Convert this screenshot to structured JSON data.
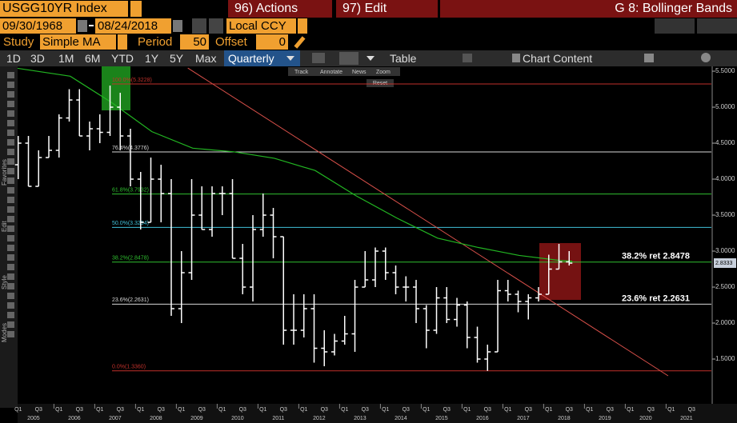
{
  "toolbar": {
    "ticker": "USGG10YR Index",
    "actions": "96) Actions",
    "edit": "97) Edit",
    "function": "G 8: Bollinger Bands",
    "start_date": "09/30/1968",
    "end_date": "08/24/2018",
    "currency": "Local CCY",
    "study_label": "Study",
    "study": "Simple MA",
    "period_label": "Period",
    "period": "50",
    "offset_label": "Offset",
    "offset": "0",
    "tabs": [
      "1D",
      "3D",
      "1M",
      "6M",
      "YTD",
      "1Y",
      "5Y",
      "Max"
    ],
    "frequency": "Quarterly",
    "table": "Table",
    "chart_content": "Chart Content",
    "mini_tools": [
      "Track",
      "Annotate",
      "News",
      "Zoom"
    ],
    "reset": "Reset",
    "side_labels": [
      "Favorites",
      "Edit",
      "Style",
      "Modes"
    ]
  },
  "chart_data": {
    "type": "ohlc",
    "series": [
      {
        "color": "#ffffff",
        "x": [
          2005.125,
          2005.375,
          2005.625,
          2005.875,
          2006.125,
          2006.375,
          2006.625,
          2006.875,
          2007.125,
          2007.375,
          2007.625,
          2007.875,
          2008.125,
          2008.375,
          2008.625,
          2008.875,
          2009.125,
          2009.375,
          2009.625,
          2009.875,
          2010.125,
          2010.375,
          2010.625,
          2010.875,
          2011.125,
          2011.375,
          2011.625,
          2011.875,
          2012.125,
          2012.375,
          2012.625,
          2012.875,
          2013.125,
          2013.375,
          2013.625,
          2013.875,
          2014.125,
          2014.375,
          2014.625,
          2014.875,
          2015.125,
          2015.375,
          2015.625,
          2015.875,
          2016.125,
          2016.375,
          2016.625,
          2016.875,
          2017.125,
          2017.375,
          2017.625,
          2017.875,
          2018.125,
          2018.375,
          2018.625
        ],
        "open": [
          4.2,
          4.5,
          3.9,
          4.3,
          4.4,
          4.85,
          5.1,
          4.6,
          4.7,
          4.65,
          5.0,
          4.6,
          4.0,
          3.4,
          4.0,
          3.8,
          2.2,
          2.7,
          3.5,
          3.3,
          3.8,
          3.8,
          2.9,
          2.5,
          3.3,
          3.5,
          3.2,
          1.9,
          1.9,
          2.2,
          1.65,
          1.6,
          1.75,
          1.85,
          2.5,
          2.6,
          3.0,
          2.7,
          2.5,
          2.5,
          2.2,
          1.9,
          2.35,
          2.05,
          2.25,
          1.8,
          1.5,
          1.6,
          2.45,
          2.4,
          2.3,
          2.35,
          2.4,
          2.75,
          2.85
        ],
        "high": [
          4.6,
          4.6,
          4.4,
          4.6,
          4.9,
          5.25,
          5.25,
          4.8,
          4.9,
          5.3,
          5.2,
          4.7,
          4.1,
          4.3,
          4.2,
          4.0,
          3.0,
          4.0,
          3.9,
          3.9,
          3.9,
          4.0,
          3.1,
          3.5,
          3.8,
          3.6,
          3.2,
          2.4,
          2.4,
          2.4,
          1.9,
          1.85,
          2.1,
          2.6,
          3.0,
          3.05,
          3.05,
          2.8,
          2.65,
          2.6,
          2.25,
          2.5,
          2.5,
          2.35,
          2.3,
          1.95,
          1.7,
          2.6,
          2.6,
          2.45,
          2.4,
          2.5,
          2.95,
          3.1,
          3.0
        ],
        "low": [
          4.0,
          3.9,
          3.9,
          4.3,
          4.3,
          4.8,
          4.6,
          4.4,
          4.5,
          4.6,
          4.4,
          3.9,
          3.3,
          3.4,
          3.4,
          2.1,
          2.0,
          2.6,
          3.3,
          3.2,
          3.5,
          2.9,
          2.4,
          2.3,
          3.2,
          2.9,
          1.7,
          1.7,
          1.8,
          1.45,
          1.4,
          1.55,
          1.7,
          1.6,
          2.5,
          2.5,
          2.6,
          2.4,
          2.3,
          2.0,
          1.65,
          1.85,
          2.0,
          1.95,
          1.65,
          1.45,
          1.336,
          1.6,
          2.3,
          2.15,
          2.05,
          2.3,
          2.4,
          2.75,
          2.8
        ],
        "close": [
          4.5,
          3.9,
          4.3,
          4.4,
          4.85,
          5.1,
          4.6,
          4.7,
          4.65,
          5.0,
          4.6,
          4.0,
          3.4,
          4.0,
          3.8,
          2.2,
          2.7,
          3.5,
          3.3,
          3.8,
          3.8,
          2.9,
          2.5,
          3.3,
          3.5,
          3.2,
          1.9,
          1.9,
          2.2,
          1.65,
          1.6,
          1.75,
          1.85,
          2.5,
          2.6,
          3.0,
          2.7,
          2.5,
          2.5,
          2.2,
          1.9,
          2.35,
          2.05,
          2.25,
          1.8,
          1.5,
          1.6,
          2.45,
          2.4,
          2.3,
          2.35,
          2.4,
          2.75,
          2.85,
          2.8333
        ]
      }
    ],
    "moving_average": {
      "color": "#22b522",
      "x": [
        2005.11,
        2006.4,
        2007.4,
        2008.4,
        2009.4,
        2010.4,
        2011.4,
        2012.4,
        2013.4,
        2014.4,
        2015.4,
        2016.4,
        2017.4,
        2018.4,
        2018.7
      ],
      "values": [
        5.54,
        5.43,
        5.07,
        4.66,
        4.43,
        4.38,
        4.29,
        4.12,
        3.77,
        3.46,
        3.18,
        3.05,
        2.94,
        2.87,
        2.86
      ]
    },
    "trendline": {
      "color": "#d9504a",
      "x": [
        2009.28,
        2021.05
      ],
      "values": [
        5.544,
        1.267
      ]
    },
    "levels": [
      {
        "value": 5.3228,
        "label": "100.0%(5.3228)",
        "color": "#c0302a"
      },
      {
        "value": 4.3776,
        "label": "76.4%(4.3776)",
        "color": "#d8d8d8"
      },
      {
        "value": 3.7932,
        "label": "61.8%(3.7932)",
        "color": "#2fbf2f"
      },
      {
        "value": 3.3294,
        "label": "50.0%(3.3294)",
        "color": "#40c0d8"
      },
      {
        "value": 2.8478,
        "label": "38.2%(2.8478)",
        "color": "#2fbf2f"
      },
      {
        "value": 2.2631,
        "label": "23.6%(2.2631)",
        "color": "#d8d8d8"
      },
      {
        "value": 1.336,
        "label": "0.0%(1.3360)",
        "color": "#c0302a"
      }
    ],
    "annotations": [
      {
        "text": "38.2% ret 2.8478",
        "value": 2.8478
      },
      {
        "text": "23.6% ret 2.2631",
        "value": 2.2631
      }
    ],
    "last_value": {
      "value": 2.8333,
      "label": "2.8333"
    },
    "xlim": [
      2005.11,
      2022.11
    ],
    "ylim": [
      0.878,
      5.567
    ],
    "yticks": [
      {
        "value": 1.5,
        "label": "1.5000"
      },
      {
        "value": 2.0,
        "label": "2.0000"
      },
      {
        "value": 2.5,
        "label": "2.5000"
      },
      {
        "value": 3.0,
        "label": "3.0000"
      },
      {
        "value": 3.5,
        "label": "3.5000"
      },
      {
        "value": 4.0,
        "label": "4.0000"
      },
      {
        "value": 4.5,
        "label": "4.5000"
      },
      {
        "value": 5.0,
        "label": "5.0000"
      },
      {
        "value": 5.5,
        "label": "5.5000"
      }
    ],
    "years": [
      2005,
      2006,
      2007,
      2008,
      2009,
      2010,
      2011,
      2012,
      2013,
      2014,
      2015,
      2016,
      2017,
      2018,
      2019,
      2020,
      2021
    ],
    "quarter_labels": [
      "Q1",
      null,
      "Q3",
      null
    ]
  }
}
